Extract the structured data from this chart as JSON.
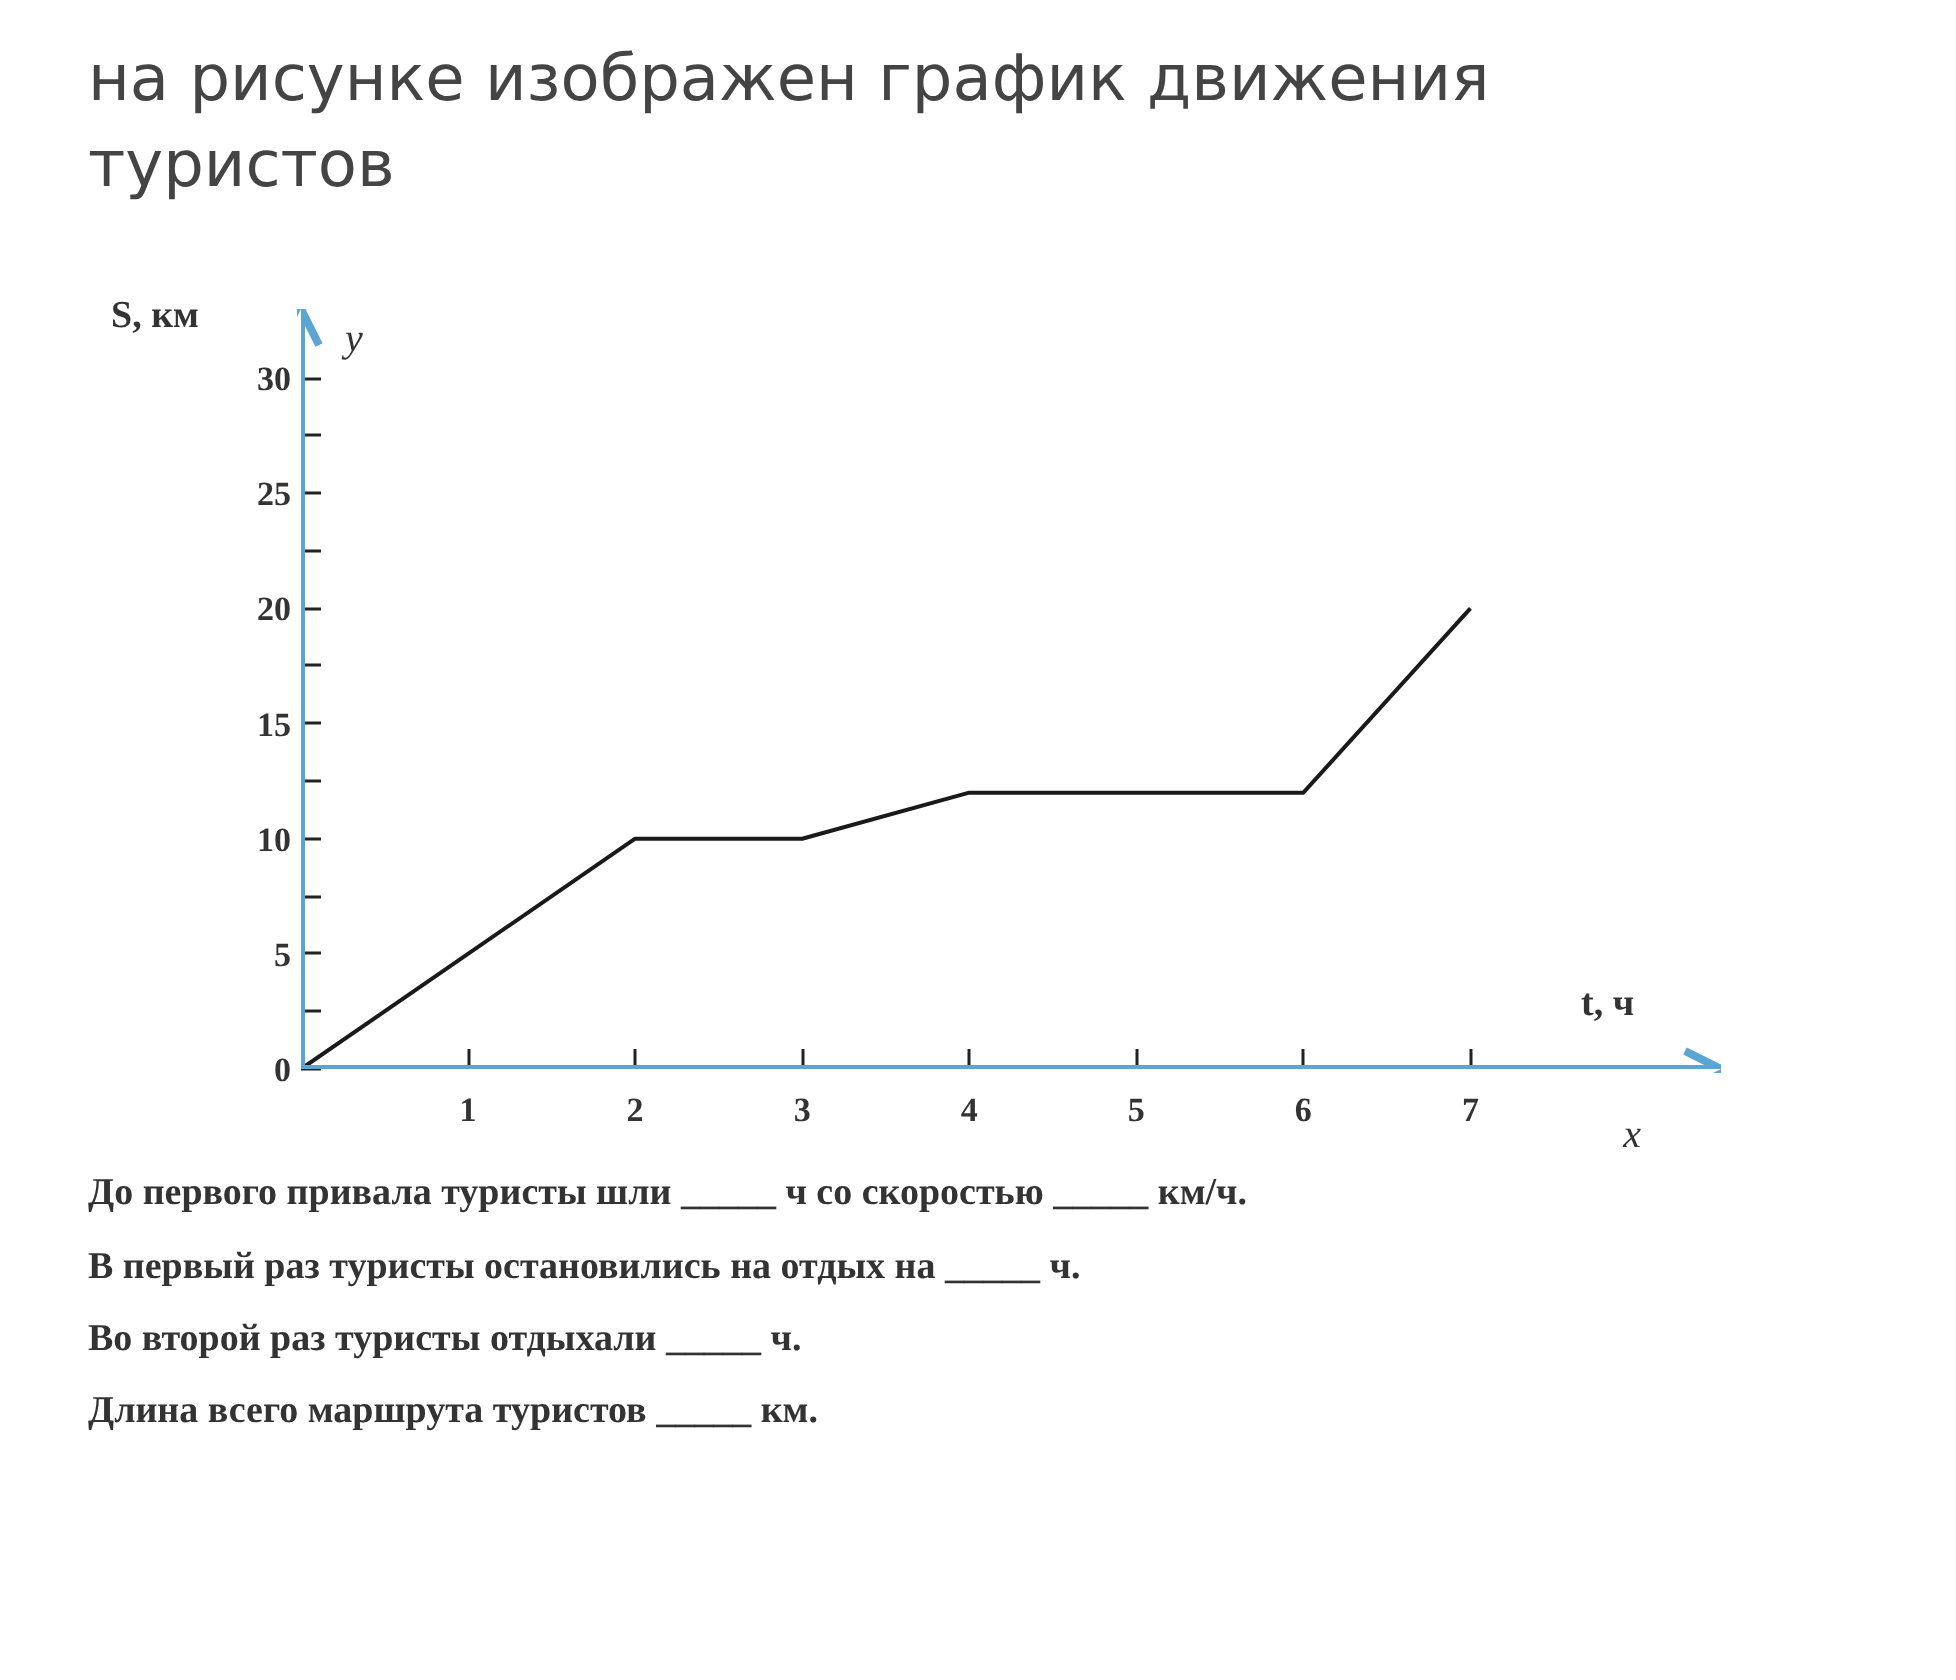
{
  "chart_data": {
    "type": "line",
    "title": "на рисунке изображен график движения туристов",
    "xlabel": "t, ч",
    "ylabel": "S, км",
    "x": [
      0,
      2,
      3,
      4,
      6,
      7
    ],
    "series": [
      {
        "color": "#1a1a1a",
        "values": [
          0,
          10,
          10,
          12,
          12,
          20
        ]
      }
    ],
    "xlim": [
      0,
      8.5
    ],
    "ylim": [
      0,
      33
    ],
    "xticks": [
      1,
      2,
      3,
      4,
      5,
      6,
      7
    ],
    "yticks": [
      0,
      {
        "value": 2.5,
        "label": null
      },
      5,
      {
        "value": 7.5,
        "label": null
      },
      10,
      {
        "value": 12.5,
        "label": null
      },
      15,
      {
        "value": 17.5,
        "label": null
      },
      20,
      {
        "value": 22.5,
        "label": null
      },
      25,
      {
        "value": 27.5,
        "label": null
      },
      30
    ],
    "grid": false,
    "marker": "none",
    "line_style": "solid",
    "annotations": [
      "y",
      "x",
      "До первого привала туристы шли _____ ч со скоростью _____ км/ч.",
      "В первый раз туристы остановились на отдых на _____ ч.",
      "Во второй раз туристы отдыхали _____ ч.",
      "Длина всего маршрута туристов _____ км."
    ]
  }
}
